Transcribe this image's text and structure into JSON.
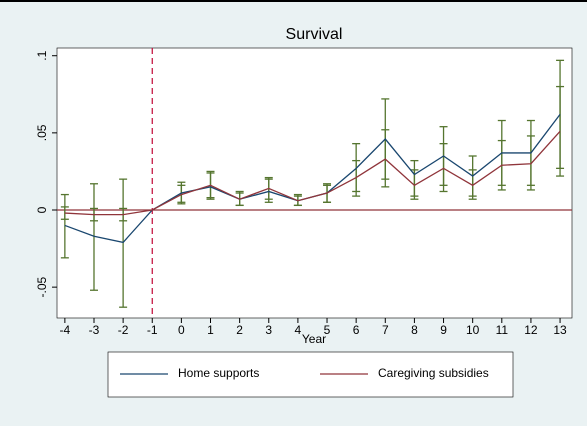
{
  "chart_data": {
    "type": "line",
    "title": "Survival",
    "x_label": "Year",
    "x": [
      -4,
      -3,
      -2,
      -1,
      0,
      1,
      2,
      3,
      4,
      5,
      6,
      7,
      8,
      9,
      10,
      11,
      12,
      13
    ],
    "series": [
      {
        "name": "Home supports",
        "color": "#1a476f",
        "values": [
          -0.01,
          -0.017,
          -0.021,
          0,
          0.011,
          0.015,
          0.007,
          0.012,
          0.006,
          0.011,
          0.027,
          0.046,
          0.023,
          0.035,
          0.022,
          0.037,
          0.037,
          0.062
        ],
        "lower": [
          -0.031,
          -0.052,
          -0.063,
          null,
          0.005,
          0.007,
          0.003,
          0.005,
          0.003,
          0.005,
          0.012,
          0.02,
          0.009,
          0.016,
          0.009,
          0.016,
          0.016,
          0.027
        ],
        "upper": [
          0.01,
          0.017,
          0.02,
          null,
          0.018,
          0.024,
          0.012,
          0.02,
          0.01,
          0.017,
          0.043,
          0.072,
          0.032,
          0.054,
          0.035,
          0.058,
          0.058,
          0.097
        ]
      },
      {
        "name": "Caregiving subsidies",
        "color": "#90353b",
        "values": [
          -0.002,
          -0.003,
          -0.003,
          0,
          0.01,
          0.016,
          0.007,
          0.014,
          0.006,
          0.011,
          0.021,
          0.033,
          0.016,
          0.027,
          0.016,
          0.029,
          0.03,
          0.051
        ],
        "lower": [
          -0.006,
          -0.007,
          -0.007,
          null,
          0.004,
          0.008,
          0.003,
          0.007,
          0.003,
          0.005,
          0.009,
          0.015,
          0.007,
          0.012,
          0.007,
          0.013,
          0.013,
          0.022
        ],
        "upper": [
          0.002,
          0.001,
          0.001,
          null,
          0.016,
          0.025,
          0.011,
          0.021,
          0.009,
          0.016,
          0.032,
          0.052,
          0.026,
          0.043,
          0.026,
          0.045,
          0.048,
          0.08
        ]
      }
    ],
    "error_color": "#55752f",
    "hline": 0,
    "hline_color": "#90353b",
    "vline": -1,
    "vline_color": "#c10534",
    "xlim": [
      -4.27,
      13.41
    ],
    "xticks": [
      -4,
      -3,
      -2,
      -1,
      0,
      1,
      2,
      3,
      4,
      5,
      6,
      7,
      8,
      9,
      10,
      11,
      12,
      13
    ],
    "ylim": [
      -0.07,
      0.105
    ],
    "yticks": [
      {
        "value": -0.05,
        "label": "-.05"
      },
      0,
      {
        "value": 0.05,
        "label": ".05"
      },
      {
        "value": 0.1,
        "label": ".1"
      }
    ],
    "legend": "bottom"
  }
}
